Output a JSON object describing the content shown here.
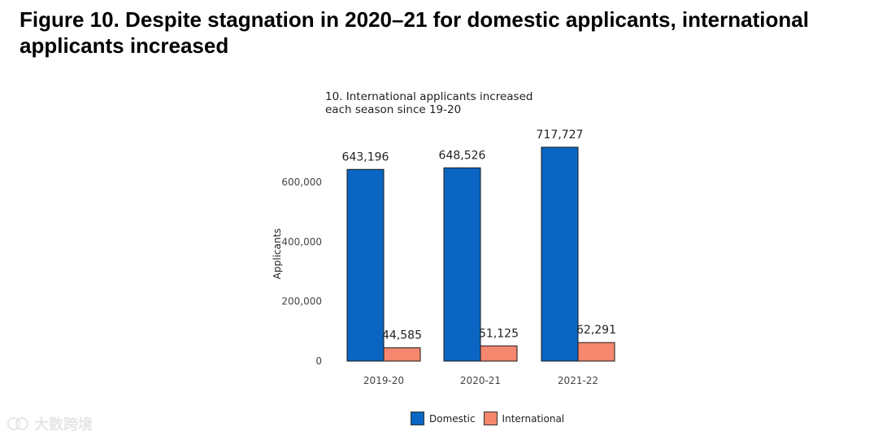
{
  "figure_title": "Figure 10. Despite stagnation in 2020–21 for domestic applicants, international applicants increased",
  "watermark": "大数跨境",
  "chart_data": {
    "type": "bar",
    "title": "10. International applicants increased each season since 19-20",
    "xlabel": "",
    "ylabel": "Applicants",
    "categories": [
      "2019-20",
      "2020-21",
      "2021-22"
    ],
    "ylim": [
      0,
      700000
    ],
    "yticks": [
      0,
      200000,
      400000,
      600000
    ],
    "ytick_labels": [
      "0",
      "200,000",
      "400,000",
      "600,000"
    ],
    "series": [
      {
        "name": "Domestic",
        "values": [
          643196,
          648526,
          717727
        ],
        "labels": [
          "643,196",
          "648,526",
          "717,727"
        ],
        "color": "#0a66c2"
      },
      {
        "name": "International",
        "values": [
          44585,
          51125,
          62291
        ],
        "labels": [
          "44,585",
          "51,125",
          "62,291"
        ],
        "color": "#f4876e"
      }
    ],
    "legend_position": "bottom",
    "grid": false
  }
}
